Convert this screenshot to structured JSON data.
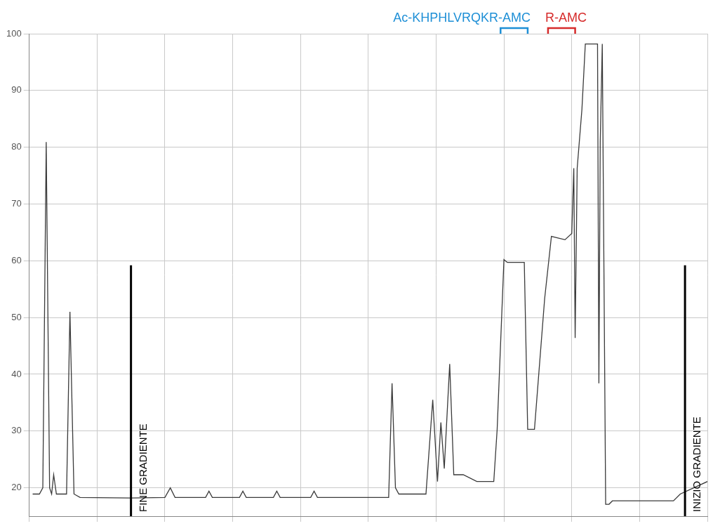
{
  "chart_data": {
    "type": "line",
    "x": [
      0.5,
      1.5,
      2.0,
      2.5,
      3.0,
      3.3,
      3.6,
      4.0,
      5.5,
      6.0,
      6.6,
      7.5,
      15.0,
      20.0,
      20.8,
      21.5,
      26.0,
      26.5,
      27.0,
      31.0,
      31.5,
      32.0,
      36.0,
      36.5,
      37.0,
      41.5,
      42.0,
      42.5,
      53.0,
      53.5,
      54.0,
      54.5,
      58.5,
      59.5,
      60.2,
      60.7,
      61.2,
      62.0,
      62.6,
      64.0,
      66.0,
      68.5,
      69.0,
      70.0,
      70.5,
      73.0,
      73.5,
      74.5,
      76.0,
      77.0,
      79.0,
      80.0,
      80.3,
      80.5,
      80.8,
      81.5,
      82.0,
      83.8,
      84.0,
      84.2,
      84.5,
      85.0,
      85.5,
      86.0,
      95.0,
      96.0,
      100.0
    ],
    "values": [
      18.9,
      18.9,
      20.0,
      80.9,
      20.0,
      18.9,
      22.3,
      18.9,
      18.9,
      51.0,
      18.9,
      18.3,
      18.2,
      18.3,
      20.0,
      18.3,
      18.3,
      19.4,
      18.3,
      18.3,
      19.4,
      18.3,
      18.3,
      19.4,
      18.3,
      18.3,
      19.4,
      18.3,
      18.3,
      38.4,
      20.0,
      18.9,
      18.9,
      35.5,
      21.1,
      31.5,
      23.4,
      41.8,
      22.3,
      22.3,
      21.1,
      21.1,
      30.3,
      60.2,
      59.7,
      59.7,
      30.3,
      30.3,
      53.3,
      64.3,
      63.7,
      64.8,
      76.3,
      46.4,
      76.3,
      86.7,
      98.2,
      98.2,
      38.4,
      80.9,
      98.2,
      17.1,
      17.1,
      17.7,
      17.7,
      18.9,
      21.1
    ],
    "color": "#3a3a3a",
    "xlim": [
      0,
      100
    ],
    "xticks": [
      0,
      10,
      20,
      30,
      40,
      50,
      60,
      70,
      80,
      90,
      100
    ],
    "ylim": [
      15,
      100
    ],
    "yticks": [
      20,
      30,
      40,
      50,
      60,
      70,
      80,
      90,
      100
    ],
    "grid": true,
    "tick_labels": "y",
    "annotations": [
      {
        "text": "Ac-KHPHLVRQKR-AMC",
        "x": [
          69.5,
          73.5
        ],
        "color": "#1e8fd6"
      },
      {
        "text": "R-AMC",
        "x": [
          76.5,
          80.5
        ],
        "color": "#d62b2b"
      }
    ],
    "vlines": [
      {
        "text": "FINE GRADIENTE",
        "x": 15
      },
      {
        "text": "INIZIO GRADIENTE",
        "x": 96.7
      }
    ]
  }
}
